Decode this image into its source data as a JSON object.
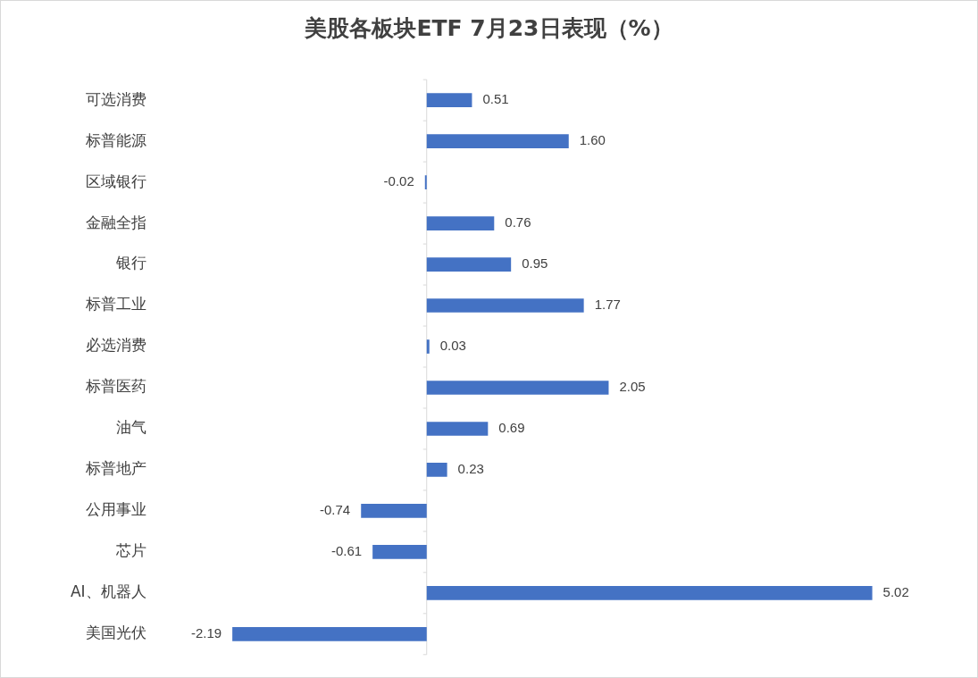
{
  "chart_data": {
    "type": "bar",
    "orientation": "horizontal",
    "title": "美股各板块ETF  7月23日表现（%）",
    "categories": [
      "可选消费",
      "标普能源",
      "区域银行",
      "金融全指",
      "银行",
      "标普工业",
      "必选消费",
      "标普医药",
      "油气",
      "标普地产",
      "公用事业",
      "芯片",
      "AI、机器人",
      "美国光伏"
    ],
    "values": [
      0.51,
      1.6,
      -0.02,
      0.76,
      0.95,
      1.77,
      0.03,
      2.05,
      0.69,
      0.23,
      -0.74,
      -0.61,
      5.02,
      -2.19
    ],
    "value_labels": [
      "0.51",
      "1.60",
      "-0.02",
      "0.76",
      "0.95",
      "1.77",
      "0.03",
      "2.05",
      "0.69",
      "0.23",
      "-0.74",
      "-0.61",
      "5.02",
      "-2.19"
    ],
    "color": "#4472c4",
    "grid": false,
    "legend": false,
    "tick_labels": "y"
  }
}
